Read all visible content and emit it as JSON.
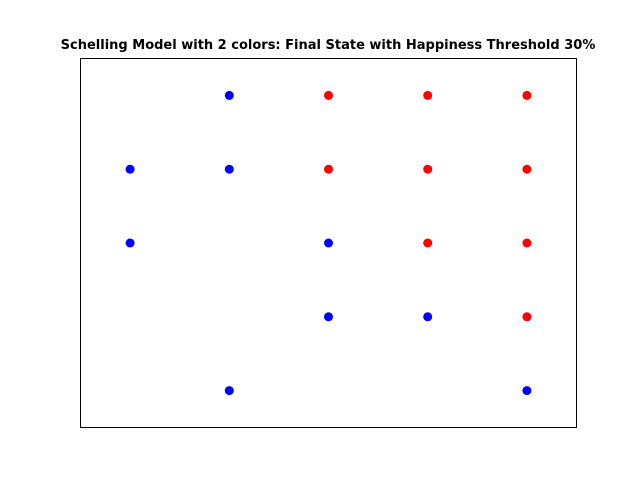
{
  "chart_data": {
    "type": "scatter",
    "title": "Schelling Model with 2 colors: Final State with Happiness Threshold 30%",
    "xlabel": "",
    "ylabel": "",
    "xlim": [
      -0.5,
      4.5
    ],
    "ylim": [
      -0.5,
      4.5
    ],
    "grid": false,
    "axis_ticks": false,
    "legend": "none",
    "series": [
      {
        "color": "#0000ff",
        "points": [
          {
            "x": 1,
            "y": 0
          },
          {
            "x": 0,
            "y": 1
          },
          {
            "x": 1,
            "y": 1
          },
          {
            "x": 0,
            "y": 2
          },
          {
            "x": 2,
            "y": 2
          },
          {
            "x": 2,
            "y": 3
          },
          {
            "x": 3,
            "y": 3
          },
          {
            "x": 1,
            "y": 4
          },
          {
            "x": 4,
            "y": 4
          }
        ]
      },
      {
        "color": "#ff0000",
        "points": [
          {
            "x": 2,
            "y": 0
          },
          {
            "x": 3,
            "y": 0
          },
          {
            "x": 4,
            "y": 0
          },
          {
            "x": 2,
            "y": 1
          },
          {
            "x": 3,
            "y": 1
          },
          {
            "x": 4,
            "y": 1
          },
          {
            "x": 3,
            "y": 2
          },
          {
            "x": 4,
            "y": 2
          },
          {
            "x": 4,
            "y": 3
          }
        ]
      }
    ]
  }
}
